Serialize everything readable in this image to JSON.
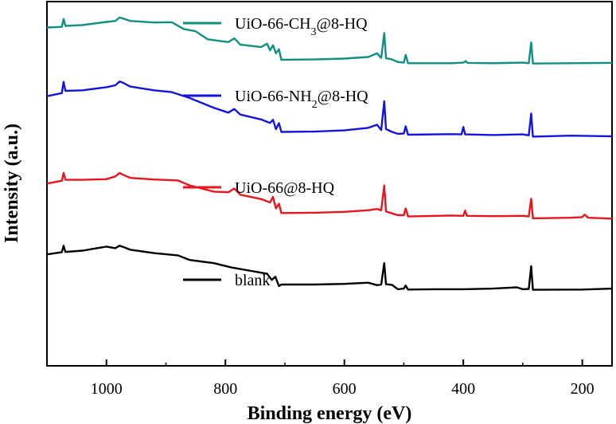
{
  "chart_data": {
    "type": "line",
    "title": "",
    "xlabel": "Binding energy (eV)",
    "ylabel": "Intensity (a.u.)",
    "xlim": [
      1100,
      150
    ],
    "x_reversed": true,
    "ylim": [
      0,
      100
    ],
    "y_ticks_shown": false,
    "grid": false,
    "legend_placement": "inline",
    "x_ticks": [
      1000,
      800,
      600,
      400,
      200
    ],
    "x_tick_labels": [
      "1000",
      "800",
      "600",
      "400",
      "200"
    ],
    "series": [
      {
        "name": "blank",
        "legend_parts": [
          {
            "text": "blank",
            "sub": false
          }
        ],
        "color": "#000000",
        "points": [
          [
            1100,
            23.8
          ],
          [
            1075,
            24.5
          ],
          [
            1072,
            26.6
          ],
          [
            1069,
            24.6
          ],
          [
            1040,
            25.0
          ],
          [
            1000,
            26.3
          ],
          [
            985,
            25.8
          ],
          [
            978,
            26.6
          ],
          [
            972,
            26.2
          ],
          [
            960,
            25.3
          ],
          [
            920,
            24.2
          ],
          [
            880,
            23.5
          ],
          [
            860,
            22.0
          ],
          [
            820,
            21.0
          ],
          [
            790,
            19.6
          ],
          [
            760,
            18.6
          ],
          [
            730,
            17.6
          ],
          [
            722,
            15.6
          ],
          [
            716,
            16.6
          ],
          [
            710,
            13.6
          ],
          [
            706,
            14.1
          ],
          [
            650,
            14.1
          ],
          [
            600,
            14.3
          ],
          [
            560,
            14.7
          ],
          [
            545,
            13.9
          ],
          [
            538,
            14.1
          ],
          [
            533,
            21.0
          ],
          [
            530,
            14.2
          ],
          [
            520,
            14.0
          ],
          [
            510,
            12.6
          ],
          [
            500,
            12.8
          ],
          [
            497,
            13.8
          ],
          [
            493,
            12.5
          ],
          [
            450,
            12.6
          ],
          [
            400,
            12.6
          ],
          [
            350,
            12.8
          ],
          [
            310,
            13.2
          ],
          [
            300,
            12.6
          ],
          [
            290,
            12.7
          ],
          [
            286,
            20.0
          ],
          [
            283,
            12.4
          ],
          [
            200,
            12.5
          ],
          [
            150,
            12.8
          ]
        ]
      },
      {
        "name": "UiO-66@8-HQ",
        "legend_parts": [
          {
            "text": "UiO-66@8-HQ",
            "sub": false
          }
        ],
        "color": "#e8141e",
        "points": [
          [
            1100,
            46.6
          ],
          [
            1075,
            47.5
          ],
          [
            1072,
            50.0
          ],
          [
            1069,
            47.8
          ],
          [
            1040,
            47.8
          ],
          [
            1000,
            48.0
          ],
          [
            985,
            48.9
          ],
          [
            978,
            50.0
          ],
          [
            972,
            49.4
          ],
          [
            960,
            48.4
          ],
          [
            920,
            47.9
          ],
          [
            880,
            47.6
          ],
          [
            860,
            46.0
          ],
          [
            820,
            44.0
          ],
          [
            795,
            43.8
          ],
          [
            785,
            45.0
          ],
          [
            775,
            43.0
          ],
          [
            740,
            41.6
          ],
          [
            725,
            40.5
          ],
          [
            720,
            42.3
          ],
          [
            715,
            38.6
          ],
          [
            710,
            40.1
          ],
          [
            706,
            37.1
          ],
          [
            650,
            37.2
          ],
          [
            600,
            37.5
          ],
          [
            560,
            38.0
          ],
          [
            545,
            38.4
          ],
          [
            538,
            38.0
          ],
          [
            533,
            46.0
          ],
          [
            530,
            37.6
          ],
          [
            520,
            37.0
          ],
          [
            510,
            36.4
          ],
          [
            500,
            36.4
          ],
          [
            497,
            38.6
          ],
          [
            493,
            36.0
          ],
          [
            420,
            36.3
          ],
          [
            400,
            36.2
          ],
          [
            397,
            37.9
          ],
          [
            394,
            36.2
          ],
          [
            350,
            36.1
          ],
          [
            300,
            36.2
          ],
          [
            290,
            36.0
          ],
          [
            286,
            41.7
          ],
          [
            283,
            35.4
          ],
          [
            220,
            35.6
          ],
          [
            200,
            35.8
          ],
          [
            196,
            36.6
          ],
          [
            190,
            35.6
          ],
          [
            150,
            35.3
          ]
        ]
      },
      {
        "name": "UiO-66-NH2@8-HQ",
        "legend_parts": [
          {
            "text": "UiO-66-NH",
            "sub": false
          },
          {
            "text": "2",
            "sub": true
          },
          {
            "text": "@8-HQ",
            "sub": false
          }
        ],
        "color": "#1414e0",
        "points": [
          [
            1100,
            74.7
          ],
          [
            1075,
            75.7
          ],
          [
            1072,
            79.3
          ],
          [
            1069,
            76.4
          ],
          [
            1040,
            76.6
          ],
          [
            1000,
            77.6
          ],
          [
            985,
            78.2
          ],
          [
            978,
            79.4
          ],
          [
            972,
            79.0
          ],
          [
            960,
            77.8
          ],
          [
            920,
            76.6
          ],
          [
            890,
            76.0
          ],
          [
            860,
            74.1
          ],
          [
            820,
            71.0
          ],
          [
            795,
            69.4
          ],
          [
            785,
            70.6
          ],
          [
            775,
            68.8
          ],
          [
            740,
            67.2
          ],
          [
            725,
            66.1
          ],
          [
            720,
            67.1
          ],
          [
            715,
            64.1
          ],
          [
            710,
            66.0
          ],
          [
            706,
            63.2
          ],
          [
            650,
            63.3
          ],
          [
            600,
            63.7
          ],
          [
            560,
            64.5
          ],
          [
            545,
            65.5
          ],
          [
            538,
            63.8
          ],
          [
            533,
            73.1
          ],
          [
            530,
            64.1
          ],
          [
            520,
            63.2
          ],
          [
            510,
            62.6
          ],
          [
            500,
            62.7
          ],
          [
            497,
            65.0
          ],
          [
            493,
            62.3
          ],
          [
            420,
            62.5
          ],
          [
            403,
            62.4
          ],
          [
            400,
            64.8
          ],
          [
            397,
            62.4
          ],
          [
            350,
            62.2
          ],
          [
            300,
            62.4
          ],
          [
            290,
            62.1
          ],
          [
            286,
            69.1
          ],
          [
            283,
            61.7
          ],
          [
            220,
            62.0
          ],
          [
            150,
            61.8
          ]
        ]
      },
      {
        "name": "UiO-66-CH3@8-HQ",
        "legend_parts": [
          {
            "text": "UiO-66-CH",
            "sub": false
          },
          {
            "text": "3",
            "sub": true
          },
          {
            "text": "@8-HQ",
            "sub": false
          }
        ],
        "color": "#109080",
        "points": [
          [
            1100,
            96.8
          ],
          [
            1075,
            97.0
          ],
          [
            1072,
            99.5
          ],
          [
            1069,
            97.3
          ],
          [
            1040,
            97.6
          ],
          [
            1000,
            98.6
          ],
          [
            985,
            98.9
          ],
          [
            978,
            100.0
          ],
          [
            972,
            99.7
          ],
          [
            960,
            98.9
          ],
          [
            920,
            98.4
          ],
          [
            890,
            98.5
          ],
          [
            870,
            96.3
          ],
          [
            850,
            95.6
          ],
          [
            830,
            93.0
          ],
          [
            795,
            92.1
          ],
          [
            785,
            93.3
          ],
          [
            775,
            91.3
          ],
          [
            740,
            90.5
          ],
          [
            730,
            91.6
          ],
          [
            725,
            89.4
          ],
          [
            720,
            91.1
          ],
          [
            715,
            88.5
          ],
          [
            710,
            89.8
          ],
          [
            706,
            86.4
          ],
          [
            650,
            86.5
          ],
          [
            600,
            86.8
          ],
          [
            560,
            87.3
          ],
          [
            545,
            88.5
          ],
          [
            538,
            87.0
          ],
          [
            533,
            95.0
          ],
          [
            530,
            86.9
          ],
          [
            520,
            86.5
          ],
          [
            510,
            85.7
          ],
          [
            500,
            85.5
          ],
          [
            497,
            88.0
          ],
          [
            493,
            85.3
          ],
          [
            420,
            85.3
          ],
          [
            400,
            85.5
          ],
          [
            396,
            86.0
          ],
          [
            393,
            85.4
          ],
          [
            350,
            85.3
          ],
          [
            300,
            85.5
          ],
          [
            290,
            85.3
          ],
          [
            286,
            92.0
          ],
          [
            283,
            85.2
          ],
          [
            220,
            85.3
          ],
          [
            150,
            85.4
          ]
        ]
      }
    ]
  }
}
